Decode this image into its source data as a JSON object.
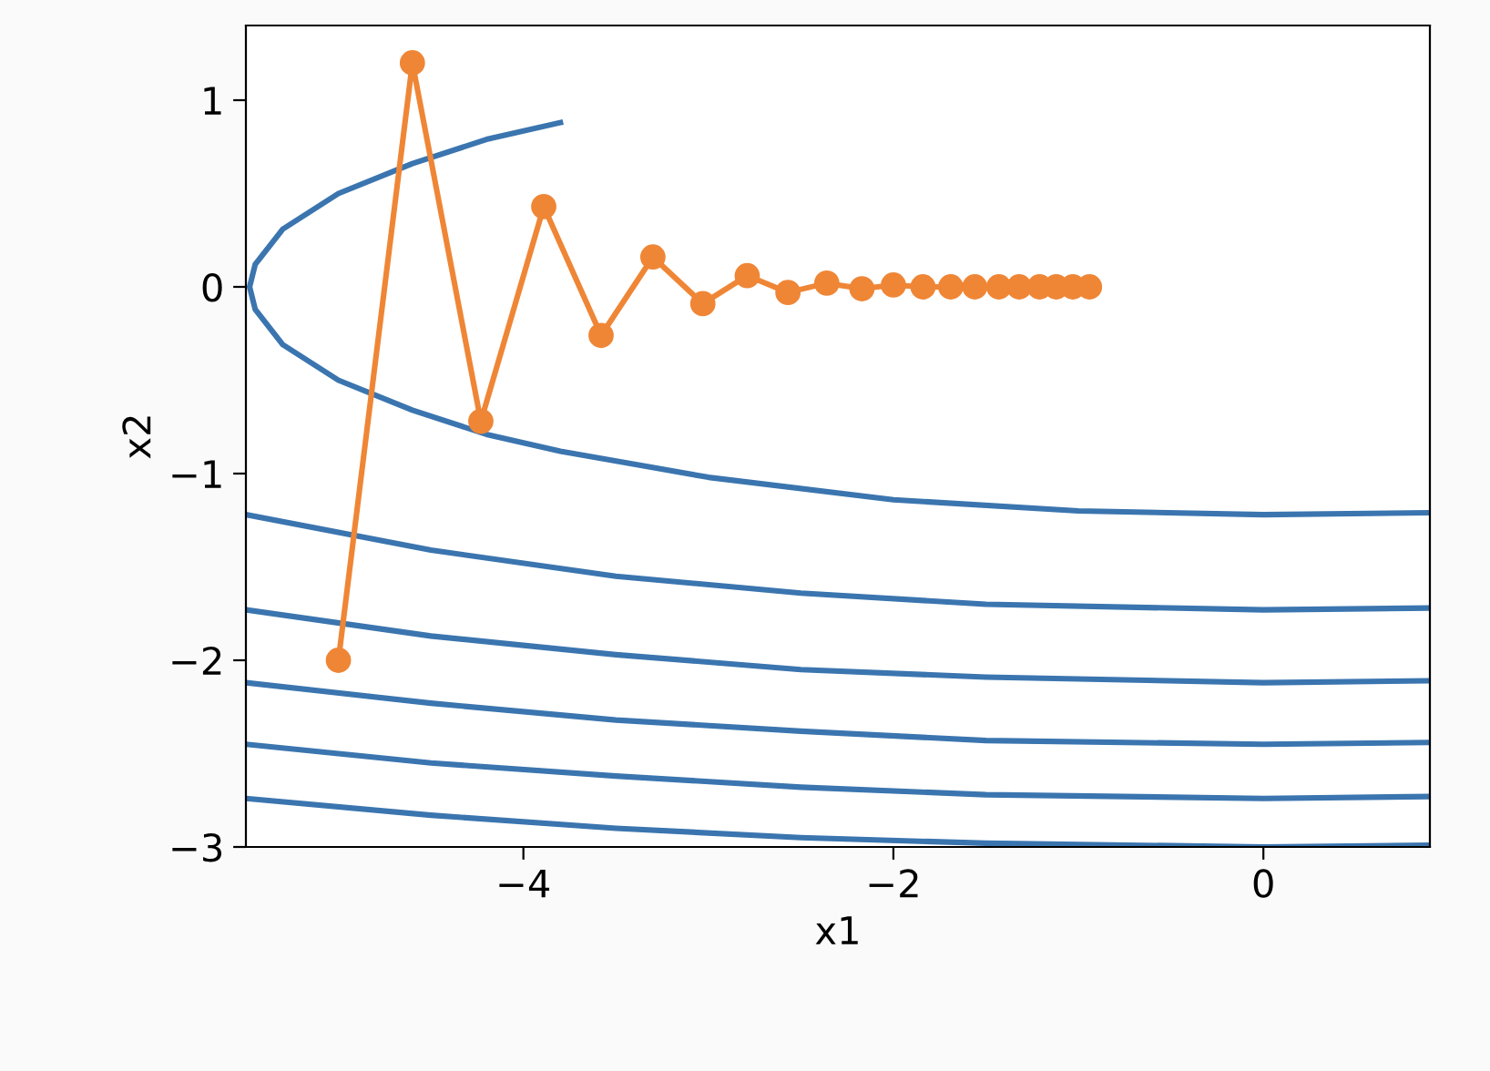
{
  "chart_data": {
    "type": "line",
    "xlabel": "x1",
    "ylabel": "x2",
    "xlim": [
      -5.5,
      0.9
    ],
    "ylim": [
      -3,
      1.4
    ],
    "xticks": [
      {
        "value": -4,
        "label": "−4"
      },
      {
        "value": -2,
        "label": "−2"
      },
      0
    ],
    "yticks": [
      {
        "value": -3,
        "label": "−3"
      },
      {
        "value": -2,
        "label": "−2"
      },
      {
        "value": -1,
        "label": "−1"
      },
      0,
      1
    ],
    "grid": false,
    "legend": false,
    "series": [
      {
        "color": "#3b75af",
        "marker": "none",
        "x": [
          -3.8,
          -4.2,
          -4.6,
          -5.0,
          -5.3,
          -5.45,
          -5.48,
          -5.45,
          -5.3,
          -5.0,
          -4.6,
          -4.2,
          -3.8,
          -3.0,
          -2.0,
          -1.0,
          0,
          0.9
        ],
        "values": [
          0.88,
          0.79,
          0.66,
          0.5,
          0.31,
          0.12,
          0,
          -0.12,
          -0.31,
          -0.5,
          -0.66,
          -0.79,
          -0.88,
          -1.02,
          -1.14,
          -1.2,
          -1.22,
          -1.21
        ]
      },
      {
        "color": "#3b75af",
        "marker": "none",
        "x": [
          -5.5,
          -4.5,
          -3.5,
          -2.5,
          -1.5,
          0,
          0.9
        ],
        "values": [
          -1.22,
          -1.41,
          -1.55,
          -1.64,
          -1.7,
          -1.73,
          -1.72
        ]
      },
      {
        "color": "#3b75af",
        "marker": "none",
        "x": [
          -5.5,
          -4.5,
          -3.5,
          -2.5,
          -1.5,
          0,
          0.9
        ],
        "values": [
          -1.73,
          -1.87,
          -1.97,
          -2.05,
          -2.09,
          -2.12,
          -2.11
        ]
      },
      {
        "color": "#3b75af",
        "marker": "none",
        "x": [
          -5.5,
          -4.5,
          -3.5,
          -2.5,
          -1.5,
          0,
          0.9
        ],
        "values": [
          -2.12,
          -2.23,
          -2.32,
          -2.38,
          -2.43,
          -2.45,
          -2.44
        ]
      },
      {
        "color": "#3b75af",
        "marker": "none",
        "x": [
          -5.5,
          -4.5,
          -3.5,
          -2.5,
          -1.5,
          0,
          0.9
        ],
        "values": [
          -2.45,
          -2.55,
          -2.62,
          -2.68,
          -2.72,
          -2.74,
          -2.73
        ]
      },
      {
        "color": "#3b75af",
        "marker": "none",
        "x": [
          -5.5,
          -4.5,
          -3.5,
          -2.5,
          -1.5,
          0,
          0.9
        ],
        "values": [
          -2.74,
          -2.83,
          -2.9,
          -2.95,
          -2.98,
          -3.0,
          -2.99
        ]
      },
      {
        "color": "#ef8636",
        "marker": "circle",
        "x": [
          -5.0,
          -4.6,
          -4.23,
          -3.89,
          -3.58,
          -3.3,
          -3.03,
          -2.79,
          -2.57,
          -2.36,
          -2.17,
          -2.0,
          -1.84,
          -1.69,
          -1.56,
          -1.43,
          -1.32,
          -1.21,
          -1.12,
          -1.03,
          -0.94
        ],
        "values": [
          -2.0,
          1.2,
          -0.72,
          0.43,
          -0.26,
          0.16,
          -0.09,
          0.06,
          -0.03,
          0.02,
          -0.01,
          0.01,
          0,
          0,
          0,
          0,
          0,
          0,
          0,
          0,
          0
        ]
      }
    ]
  }
}
